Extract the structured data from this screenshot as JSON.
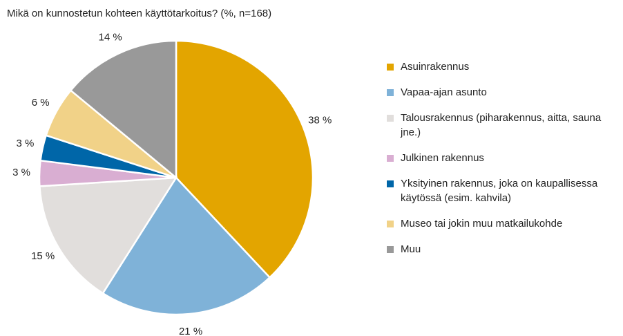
{
  "chart_data": {
    "type": "pie",
    "title": "Mikä on kunnostetun kohteen käyttötarkoitus? (%, n=168)",
    "categories": [
      "Asuinrakennus",
      "Vapaa-ajan asunto",
      "Talousrakennus (piharakennus, aitta, sauna jne.)",
      "Julkinen rakennus",
      "Yksityinen rakennus, joka on kaupallisessa käytössä (esim. kahvila)",
      "Museo tai jokin muu matkailukohde",
      "Muu"
    ],
    "values": [
      38,
      21,
      15,
      3,
      3,
      6,
      14
    ],
    "value_labels": [
      "38 %",
      "21 %",
      "15 %",
      "3 %",
      "3 %",
      "6 %",
      "14 %"
    ],
    "colors": [
      "#e3a500",
      "#7fb2d8",
      "#e1dedc",
      "#d9aed2",
      "#0066a8",
      "#f1d288",
      "#999999"
    ],
    "legend": "right"
  }
}
